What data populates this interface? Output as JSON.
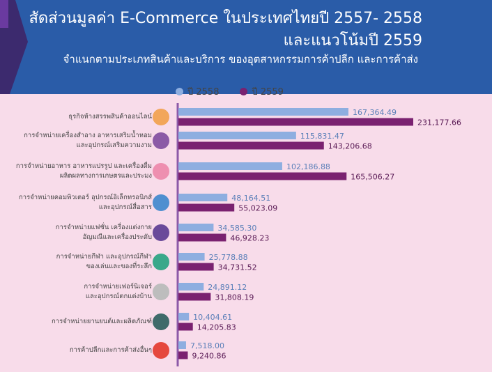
{
  "header": {
    "title_line1": "สัดส่วนมูลค่า E-Commerce ในประเทศไทยปี 2557- 2558",
    "title_line2": "และแนวโน้มปี 2559",
    "subtitle": "จำแนกตามประเภทสินค้าและบริการ ของอุตสาหกรรมการค้าปลีก และการค้าส่ง"
  },
  "colors": {
    "header": "#2a5ca8",
    "header_dark": "#3c2a6e",
    "background": "#f8dcea",
    "series_2558": "#8eaee0",
    "series_2559": "#7a2170",
    "axis": "#8d5aa8"
  },
  "chart_data": {
    "type": "bar",
    "orientation": "horizontal",
    "legend_position": "top",
    "grid": false,
    "categories": [
      {
        "lines": [
          "ธุรกิจห้างสรรพสินค้าออนไลน์"
        ],
        "icon": "store-icon",
        "icon_color": "#f2a65a"
      },
      {
        "lines": [
          "การจำหน่ายเครื่องสำอาง อาหารเสริมน้ำหอม",
          "และอุปกรณ์เสริมความงาม"
        ],
        "icon": "cosmetics-icon",
        "icon_color": "#8b5aa6"
      },
      {
        "lines": [
          "การจำหน่ายอาหาร อาหารแปรรูป และเครื่องดื่ม",
          "ผลิตผลทางการเกษตรและประมง"
        ],
        "icon": "burger-icon",
        "icon_color": "#ee8fb0"
      },
      {
        "lines": [
          "การจำหน่ายคอมพิวเตอร์ อุปกรณ์อิเล็กทรอนิกส์",
          "และอุปกรณ์สื่อสาร"
        ],
        "icon": "computer-icon",
        "icon_color": "#4f8fd0"
      },
      {
        "lines": [
          "การจำหน่ายแฟชั่น เครื่องแต่งกาย",
          "อัญมณีและเครื่องประดับ"
        ],
        "icon": "dress-icon",
        "icon_color": "#6a4a9a"
      },
      {
        "lines": [
          "การจำหน่ายกีฬา และอุปกรณ์กีฬา",
          "ของเล่นและของที่ระลึก"
        ],
        "icon": "basketball-icon",
        "icon_color": "#3aa88a"
      },
      {
        "lines": [
          "การจำหน่ายเฟอร์นิเจอร์",
          "และอุปกรณ์ตกแต่งบ้าน"
        ],
        "icon": "sofa-icon",
        "icon_color": "#bdbdbd"
      },
      {
        "lines": [
          "การจำหน่ายยานยนต์และผลิตภัณฑ์"
        ],
        "icon": "car-icon",
        "icon_color": "#3f6a6a"
      },
      {
        "lines": [
          "การค้าปลีกและการค้าส่งอื่นๆ"
        ],
        "icon": "shop-icon",
        "icon_color": "#e5483e"
      }
    ],
    "series": [
      {
        "name": "ปี 2558",
        "values": [
          167364.49,
          115831.47,
          102186.88,
          48164.51,
          34585.3,
          25778.88,
          24891.12,
          10404.61,
          7518.0
        ],
        "labels": [
          "167,364.49",
          "115,831.47",
          "102,186.88",
          "48,164.51",
          "34,585.30",
          "25,778.88",
          "24,891.12",
          "10,404.61",
          "7,518.00"
        ]
      },
      {
        "name": "ปี 2559",
        "values": [
          231177.66,
          143206.68,
          165506.27,
          55023.09,
          46928.23,
          34731.52,
          31808.19,
          14205.83,
          9240.86
        ],
        "labels": [
          "231,177.66",
          "143,206.68",
          "165,506.27",
          "55,023.09",
          "46,928.23",
          "34,731.52",
          "31,808.19",
          "14,205.83",
          "9,240.86"
        ]
      }
    ]
  }
}
